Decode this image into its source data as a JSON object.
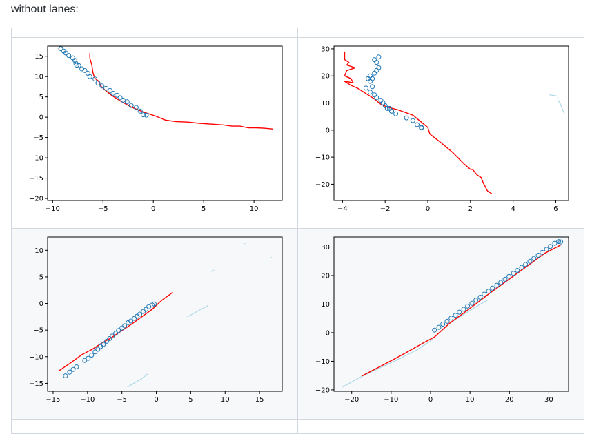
{
  "caption": "without lanes:",
  "colors": {
    "trajectory": "#ff0000",
    "observed": "#1f77b4",
    "context": "#add8e6"
  },
  "chart_data": [
    {
      "type": "line",
      "title": "",
      "xlabel": "",
      "ylabel": "",
      "xlim": [
        -10.5,
        12.8
      ],
      "ylim": [
        -20.5,
        17.5
      ],
      "xticks": [
        -10,
        -5,
        0,
        5,
        10
      ],
      "xticklabels": [
        "−10",
        "−5",
        "0",
        "5",
        "10"
      ],
      "yticks": [
        -20,
        -15,
        -10,
        -5,
        0,
        5,
        10,
        15
      ],
      "yticklabels": [
        "−20",
        "−15",
        "−10",
        "−5",
        "0",
        "5",
        "10",
        "15"
      ],
      "series": [
        {
          "kind": "line",
          "role": "trajectory",
          "x": [
            -6.3,
            -6.3,
            -6.1,
            -6.0,
            -5.9,
            -5.8,
            -5.7,
            -5.6,
            -5.5,
            -5.4,
            -5.3,
            -5.3,
            -4.8,
            -4.1,
            -3.2,
            -2.2,
            -1.0,
            0.2,
            1.2,
            2.3,
            3.4,
            4.6,
            5.8,
            7.0,
            7.8,
            8.6,
            9.4,
            10.2,
            11.0,
            11.9
          ],
          "y": [
            15.8,
            14.5,
            12.8,
            11.0,
            10.2,
            9.6,
            9.4,
            9.2,
            9.0,
            8.7,
            8.3,
            7.9,
            6.7,
            5.3,
            3.9,
            2.5,
            1.3,
            0.3,
            -0.7,
            -1.1,
            -1.2,
            -1.5,
            -1.7,
            -1.9,
            -2.2,
            -2.2,
            -2.6,
            -2.6,
            -2.7,
            -2.9
          ]
        },
        {
          "kind": "scatter",
          "role": "observed",
          "x": [
            -9.2,
            -8.9,
            -8.7,
            -8.4,
            -8.0,
            -7.8,
            -7.7,
            -7.6,
            -7.4,
            -7.1,
            -6.8,
            -6.5,
            -6.3,
            -5.8,
            -5.5,
            -5.1,
            -4.7,
            -4.3,
            -4.0,
            -3.6,
            -3.3,
            -3.0,
            -2.6,
            -2.2,
            -1.7,
            -1.3,
            -1.0,
            -0.7
          ],
          "y": [
            16.9,
            16.3,
            15.8,
            15.2,
            14.6,
            14.0,
            13.3,
            12.8,
            12.7,
            11.9,
            11.5,
            10.8,
            10.0,
            9.4,
            8.4,
            7.7,
            7.1,
            6.6,
            5.9,
            5.4,
            4.8,
            4.2,
            3.8,
            2.9,
            2.4,
            1.5,
            0.6,
            0.5
          ]
        }
      ]
    },
    {
      "type": "line",
      "title": "",
      "xlabel": "",
      "ylabel": "",
      "xlim": [
        -4.4,
        6.6
      ],
      "ylim": [
        -26,
        31
      ],
      "xticks": [
        -4,
        -2,
        0,
        2,
        4,
        6
      ],
      "xticklabels": [
        "−4",
        "−2",
        "0",
        "2",
        "4",
        "6"
      ],
      "yticks": [
        -20,
        -10,
        0,
        10,
        20,
        30
      ],
      "yticklabels": [
        "−20",
        "−10",
        "0",
        "10",
        "20",
        "30"
      ],
      "series": [
        {
          "kind": "line",
          "role": "trajectory",
          "x": [
            -3.9,
            -3.9,
            -3.7,
            -3.8,
            -3.4,
            -3.8,
            -3.9,
            -3.6,
            -3.5,
            -3.9,
            -3.6,
            -3.3,
            -2.9,
            -2.5,
            -2.2,
            -1.9,
            -1.4,
            -0.7,
            0.0,
            0.1,
            0.6,
            1.2,
            1.7,
            2.0,
            2.1,
            2.3,
            2.5,
            2.6,
            2.8,
            3.0
          ],
          "y": [
            29,
            26,
            25,
            24,
            23,
            22,
            20,
            19,
            17.5,
            18,
            16.5,
            15.5,
            13.5,
            11.5,
            9.5,
            8.5,
            7.5,
            5.5,
            1.0,
            -1.5,
            -4.5,
            -8.5,
            -12.5,
            -14.5,
            -14.5,
            -16.5,
            -17.5,
            -19.5,
            -22.5,
            -23.5
          ]
        },
        {
          "kind": "scatter",
          "role": "observed",
          "x": [
            -2.3,
            -2.5,
            -2.4,
            -2.3,
            -2.4,
            -2.5,
            -2.7,
            -2.6,
            -2.8,
            -2.7,
            -2.9,
            -2.6,
            -2.7,
            -2.5,
            -2.4,
            -2.2,
            -2.1,
            -2.0,
            -1.9,
            -1.8,
            -1.7,
            -1.7,
            -1.5,
            -1.0,
            -0.7,
            -0.5,
            -0.3,
            -0.3
          ],
          "y": [
            27,
            26,
            25,
            23,
            22,
            21,
            20,
            19,
            19,
            18,
            15.5,
            16,
            14,
            13,
            12,
            11,
            10,
            9,
            8,
            8,
            7,
            7,
            6,
            4.5,
            3.5,
            2,
            1,
            0.8
          ]
        },
        {
          "kind": "line",
          "role": "context",
          "x": [
            5.7,
            5.9,
            6.1,
            6.1,
            6.2,
            6.3,
            6.4
          ],
          "y": [
            13,
            12.8,
            12.5,
            11,
            10,
            8,
            6
          ]
        }
      ]
    },
    {
      "type": "line",
      "title": "",
      "xlabel": "",
      "ylabel": "",
      "xlim": [
        -15.8,
        18.3
      ],
      "ylim": [
        -16.5,
        12.5
      ],
      "xticks": [
        -15,
        -10,
        -5,
        0,
        5,
        10,
        15
      ],
      "xticklabels": [
        "−15",
        "−10",
        "−5",
        "0",
        "5",
        "10",
        "15"
      ],
      "yticks": [
        -15,
        -10,
        -5,
        0,
        5,
        10
      ],
      "yticklabels": [
        "−15",
        "−10",
        "−5",
        "0",
        "5",
        "10"
      ],
      "series": [
        {
          "kind": "line",
          "role": "trajectory",
          "x": [
            -14.2,
            -12.5,
            -10.8,
            -9.3,
            -8.0,
            -6.5,
            -5.0,
            -3.5,
            -2.0,
            -0.6,
            0.8,
            2.4
          ],
          "y": [
            -12.7,
            -11.2,
            -9.6,
            -8.6,
            -7.5,
            -6.4,
            -5.1,
            -3.8,
            -2.4,
            -1.1,
            0.6,
            2.1
          ]
        },
        {
          "kind": "scatter",
          "role": "observed",
          "x": [
            -13.2,
            -12.6,
            -12.1,
            -11.6,
            -10.4,
            -9.9,
            -9.4,
            -8.9,
            -8.5,
            -8.1,
            -7.7,
            -7.2,
            -6.8,
            -6.4,
            -5.9,
            -5.5,
            -5.0,
            -4.6,
            -4.1,
            -3.7,
            -3.2,
            -2.8,
            -2.4,
            -1.9,
            -1.5,
            -1.1,
            -0.6,
            -0.3
          ],
          "y": [
            -13.6,
            -12.9,
            -12.4,
            -11.9,
            -10.7,
            -10.3,
            -9.7,
            -9.1,
            -8.6,
            -8.1,
            -7.7,
            -7.1,
            -6.6,
            -6.1,
            -5.6,
            -5.1,
            -4.6,
            -4.2,
            -3.6,
            -3.3,
            -2.8,
            -2.4,
            -2.0,
            -1.5,
            -1.1,
            -0.6,
            -0.3,
            -0.1
          ]
        },
        {
          "kind": "line",
          "role": "context",
          "x": [
            -4.2,
            -3.0,
            -2.0,
            -1.2
          ],
          "y": [
            -15.7,
            -14.8,
            -14.0,
            -13.2
          ]
        },
        {
          "kind": "line",
          "role": "context",
          "x": [
            4.5,
            5.5,
            6.5,
            7.5
          ],
          "y": [
            -2.5,
            -1.8,
            -1.1,
            -0.4
          ]
        },
        {
          "kind": "line",
          "role": "context",
          "x": [
            8.0,
            8.4
          ],
          "y": [
            6.0,
            6.3
          ]
        },
        {
          "kind": "line",
          "role": "context",
          "x": [
            12.8,
            12.9
          ],
          "y": [
            11.2,
            11.3
          ]
        },
        {
          "kind": "line",
          "role": "context",
          "x": [
            16.7,
            16.8
          ],
          "y": [
            8.6,
            8.7
          ]
        }
      ]
    },
    {
      "type": "line",
      "title": "",
      "xlabel": "",
      "ylabel": "",
      "xlim": [
        -24.5,
        35
      ],
      "ylim": [
        -20.5,
        33.5
      ],
      "xticks": [
        -20,
        -10,
        0,
        10,
        20,
        30
      ],
      "xticklabels": [
        "−20",
        "−10",
        "0",
        "10",
        "20",
        "30"
      ],
      "yticks": [
        -20,
        -10,
        0,
        10,
        20,
        30
      ],
      "yticklabels": [
        "−20",
        "−10",
        "0",
        "10",
        "20",
        "30"
      ],
      "series": [
        {
          "kind": "line",
          "role": "context",
          "x": [
            -22.3,
            -18.0,
            -13.0,
            -8.0,
            -3.5,
            0.0,
            4.0,
            8.5,
            12.0,
            14.5
          ],
          "y": [
            -19.0,
            -15.7,
            -12.4,
            -9.2,
            -6.0,
            -2.9,
            2.5,
            6.5,
            9.5,
            11.5
          ]
        },
        {
          "kind": "line",
          "role": "trajectory",
          "x": [
            -17.5,
            -14.0,
            -10.0,
            -6.0,
            -2.0,
            1.0,
            5.0,
            10.0,
            15.0,
            20.0,
            25.0,
            29.0,
            33.0
          ],
          "y": [
            -15.2,
            -12.7,
            -9.8,
            -6.8,
            -3.7,
            -1.5,
            3.5,
            8.5,
            13.8,
            18.8,
            23.8,
            27.8,
            30.7
          ]
        },
        {
          "kind": "scatter",
          "role": "observed",
          "x": [
            1.0,
            2.1,
            3.1,
            4.2,
            5.2,
            6.3,
            7.3,
            8.4,
            9.4,
            10.5,
            11.5,
            12.6,
            13.6,
            14.7,
            15.7,
            16.8,
            17.8,
            18.9,
            19.9,
            21.0,
            22.0,
            23.1,
            24.1,
            25.2,
            26.2,
            27.3,
            28.3,
            29.4,
            30.4,
            31.5,
            32.5,
            33.0
          ],
          "y": [
            0.9,
            1.9,
            3.0,
            4.0,
            5.1,
            6.1,
            7.2,
            8.2,
            9.3,
            10.3,
            11.4,
            12.4,
            13.5,
            14.5,
            15.6,
            16.6,
            17.6,
            18.7,
            19.7,
            20.8,
            21.8,
            22.9,
            23.9,
            25.0,
            26.0,
            27.1,
            28.1,
            29.2,
            30.2,
            31.3,
            31.9,
            31.8
          ]
        }
      ]
    }
  ]
}
